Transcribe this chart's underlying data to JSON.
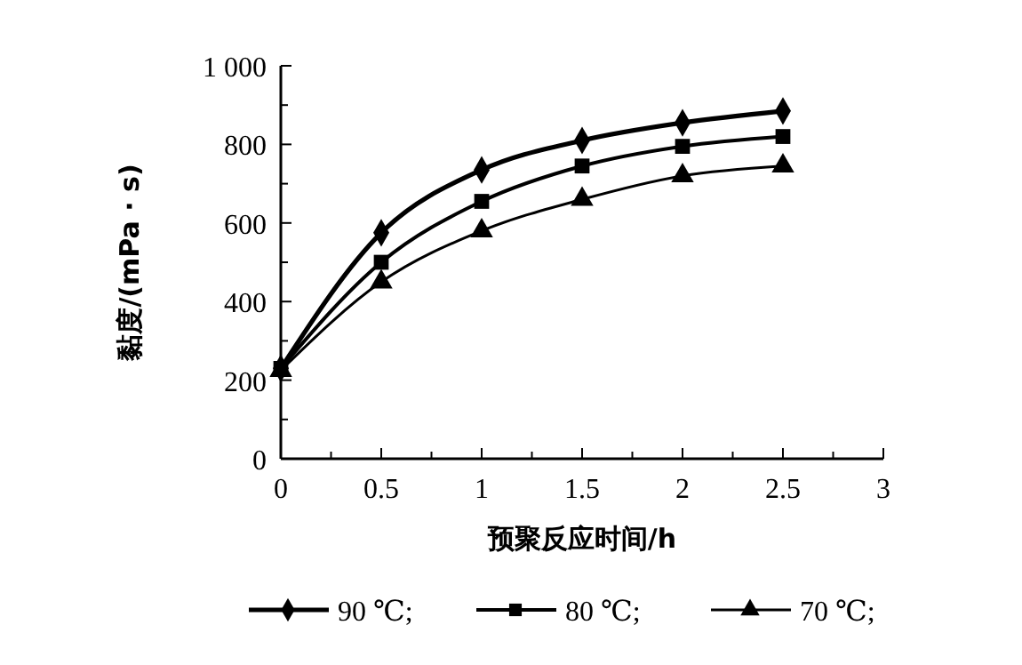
{
  "chart_data": {
    "type": "line",
    "xlabel": "预聚反应时间/h",
    "ylabel": "黏度/(mPa · s)",
    "x": [
      0,
      0.5,
      1,
      1.5,
      2,
      2.5
    ],
    "xlim": [
      0,
      3
    ],
    "xticks": [
      0,
      {
        "value": 0.25,
        "label": null
      },
      0.5,
      {
        "value": 0.75,
        "label": null
      },
      1,
      {
        "value": 1.25,
        "label": null
      },
      1.5,
      {
        "value": 1.75,
        "label": null
      },
      2,
      {
        "value": 2.25,
        "label": null
      },
      2.5,
      {
        "value": 2.75,
        "label": null
      },
      3
    ],
    "ylim": [
      0,
      1000
    ],
    "yticks": [
      0,
      {
        "value": 100,
        "label": null
      },
      200,
      {
        "value": 300,
        "label": null
      },
      400,
      {
        "value": 500,
        "label": null
      },
      600,
      {
        "value": 700,
        "label": null
      },
      800,
      {
        "value": 900,
        "label": null
      },
      {
        "value": 1000,
        "label": "1 000"
      }
    ],
    "grid": false,
    "legend": "bottom",
    "line_style": "solid",
    "series": [
      {
        "name": "90 ℃;",
        "color": "#000000",
        "marker": "diamond",
        "values": [
          230,
          575,
          735,
          810,
          855,
          885
        ]
      },
      {
        "name": "80 ℃;",
        "color": "#000000",
        "marker": "square",
        "values": [
          230,
          500,
          655,
          745,
          795,
          820
        ]
      },
      {
        "name": "70 ℃;",
        "color": "#000000",
        "marker": "triangle",
        "values": [
          225,
          450,
          580,
          660,
          720,
          745
        ]
      }
    ]
  }
}
